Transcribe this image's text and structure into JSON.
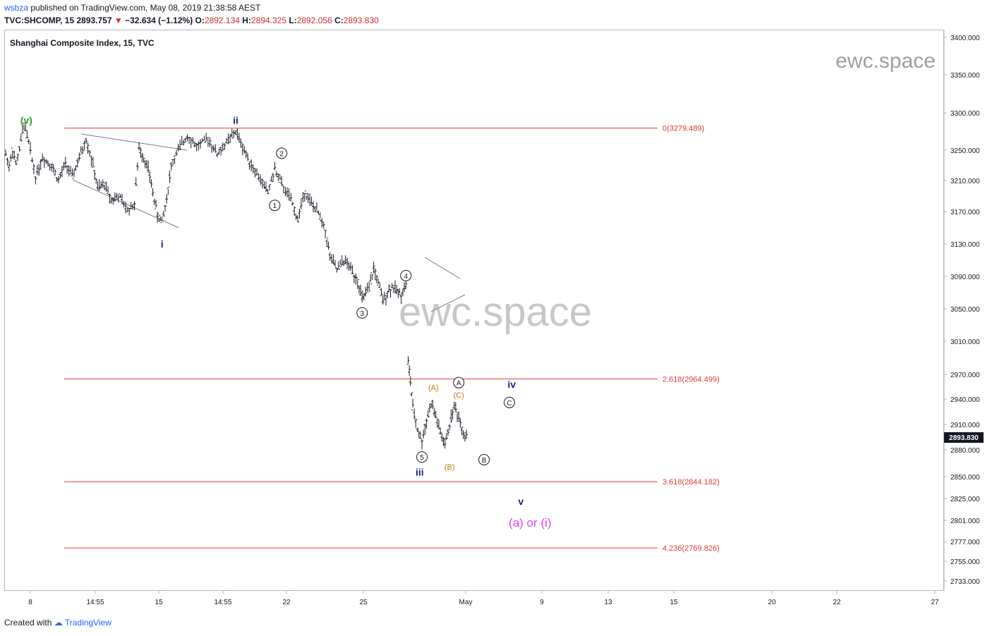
{
  "header": {
    "publisher": "wsbza",
    "published_text": "published on TradingView.com, May 08, 2019 21:38:58 AEST",
    "symbol": "TVC:SHCOMP, 15",
    "last": "2893.757",
    "change": "−32.634 (−1.12%)",
    "o_label": "O:",
    "o": "2892.134",
    "h_label": "H:",
    "h": "2894.325",
    "l_label": "L:",
    "l": "2892.056",
    "c_label": "C:",
    "c": "2893.830"
  },
  "chart_title": "Shanghai Composite Index, 15, TVC",
  "watermark_small": "ewc.space",
  "watermark_big": "ewc.space",
  "price_tag": "2893.830",
  "footer": {
    "created_with": "Created with",
    "brand": "TradingView"
  },
  "colors": {
    "red_line": "#e53935",
    "wave_blue": "#1a237e",
    "wave_green": "#2e9d2e",
    "wave_orange": "#c47a0c",
    "wave_magenta": "#e040fb",
    "bar": "#131722"
  },
  "chart_data": {
    "type": "ohlc",
    "instrument": "Shanghai Composite Index",
    "interval": "15",
    "ylim": [
      2720,
      3420
    ],
    "y_ticks": [
      "3400.000",
      "3350.000",
      "3300.000",
      "3250.000",
      "3210.000",
      "3170.000",
      "3130.000",
      "3090.000",
      "3050.000",
      "3010.000",
      "2970.000",
      "2940.000",
      "2910.000",
      "2880.000",
      "2850.000",
      "2825.000",
      "2801.000",
      "2777.000",
      "2755.000",
      "2733.000"
    ],
    "x_ticks": [
      "8",
      "14:55",
      "15",
      "14:55",
      "22",
      "25",
      "May",
      "9",
      "13",
      "15",
      "20",
      "22",
      "27"
    ],
    "fib_levels": [
      {
        "label": "0(3279.489)",
        "value": 3279.489
      },
      {
        "label": "2.618(2964.499)",
        "value": 2964.499
      },
      {
        "label": "3.618(2844.182)",
        "value": 2844.182
      },
      {
        "label": "4.236(2769.826)",
        "value": 2769.826
      }
    ],
    "price_path": [
      [
        0,
        3245
      ],
      [
        0.15,
        3230
      ],
      [
        0.3,
        3250
      ],
      [
        0.45,
        3232
      ],
      [
        0.6,
        3252
      ],
      [
        0.8,
        3285
      ],
      [
        1.0,
        3260
      ],
      [
        1.3,
        3215
      ],
      [
        1.6,
        3240
      ],
      [
        2.0,
        3230
      ],
      [
        2.3,
        3210
      ],
      [
        2.6,
        3232
      ],
      [
        2.9,
        3215
      ],
      [
        3.2,
        3240
      ],
      [
        3.5,
        3265
      ],
      [
        3.8,
        3230
      ],
      [
        4.0,
        3200
      ],
      [
        4.3,
        3205
      ],
      [
        4.6,
        3185
      ],
      [
        4.9,
        3190
      ],
      [
        5.3,
        3172
      ],
      [
        5.6,
        3180
      ],
      [
        5.8,
        3253
      ],
      [
        6.0,
        3240
      ],
      [
        6.2,
        3225
      ],
      [
        6.4,
        3195
      ],
      [
        6.6,
        3165
      ],
      [
        6.8,
        3158
      ],
      [
        7.0,
        3185
      ],
      [
        7.2,
        3230
      ],
      [
        7.5,
        3250
      ],
      [
        7.9,
        3270
      ],
      [
        8.3,
        3255
      ],
      [
        8.8,
        3265
      ],
      [
        9.2,
        3245
      ],
      [
        9.6,
        3260
      ],
      [
        10.0,
        3275
      ],
      [
        10.3,
        3255
      ],
      [
        10.6,
        3235
      ],
      [
        11.0,
        3215
      ],
      [
        11.4,
        3195
      ],
      [
        11.7,
        3225
      ],
      [
        12.0,
        3205
      ],
      [
        12.4,
        3185
      ],
      [
        12.7,
        3160
      ],
      [
        13.0,
        3195
      ],
      [
        13.3,
        3180
      ],
      [
        13.6,
        3168
      ],
      [
        13.9,
        3145
      ],
      [
        14.1,
        3115
      ],
      [
        14.4,
        3098
      ],
      [
        14.7,
        3110
      ],
      [
        15.0,
        3100
      ],
      [
        15.3,
        3085
      ],
      [
        15.5,
        3062
      ],
      [
        15.8,
        3075
      ],
      [
        16.0,
        3100
      ],
      [
        16.2,
        3082
      ],
      [
        16.4,
        3060
      ],
      [
        16.6,
        3070
      ],
      [
        16.8,
        3078
      ],
      [
        17.0,
        3072
      ],
      [
        17.2,
        3068
      ],
      [
        17.4,
        3080
      ],
      [
        17.5,
        2985
      ],
      [
        17.6,
        2962
      ],
      [
        17.7,
        2930
      ],
      [
        17.9,
        2905
      ],
      [
        18.1,
        2890
      ],
      [
        18.3,
        2915
      ],
      [
        18.5,
        2935
      ],
      [
        18.7,
        2920
      ],
      [
        18.9,
        2900
      ],
      [
        19.1,
        2885
      ],
      [
        19.3,
        2910
      ],
      [
        19.5,
        2932
      ],
      [
        19.7,
        2918
      ],
      [
        19.9,
        2900
      ],
      [
        20.1,
        2895
      ]
    ],
    "wave_labels": [
      {
        "text": "(v)",
        "color": "green",
        "bar": 0.9,
        "y": 3290
      },
      {
        "text": "ii",
        "color": "blue",
        "bar": 10.0,
        "y": 3290
      },
      {
        "text": "i",
        "color": "blue",
        "bar": 6.8,
        "y": 3130
      },
      {
        "text": "2",
        "circled": true,
        "bar": 12.0,
        "y": 3246
      },
      {
        "text": "1",
        "circled": true,
        "bar": 11.7,
        "y": 3178
      },
      {
        "text": "4",
        "circled": true,
        "bar": 17.4,
        "y": 3091
      },
      {
        "text": "3",
        "circled": true,
        "bar": 15.5,
        "y": 3045
      },
      {
        "text": "A",
        "circled": true,
        "bar": 19.7,
        "y": 2960
      },
      {
        "text": "(A)",
        "color": "orange",
        "bar": 18.6,
        "y": 2955
      },
      {
        "text": "(C)",
        "color": "orange",
        "bar": 19.7,
        "y": 2946
      },
      {
        "text": "iv",
        "color": "blue",
        "bar": 22.0,
        "y": 2958
      },
      {
        "text": "C",
        "circled": true,
        "bar": 21.9,
        "y": 2936
      },
      {
        "text": "5",
        "circled": true,
        "bar": 18.1,
        "y": 2872
      },
      {
        "text": "(B)",
        "color": "orange",
        "bar": 19.3,
        "y": 2862
      },
      {
        "text": "B",
        "circled": true,
        "bar": 20.8,
        "y": 2869
      },
      {
        "text": "iii",
        "color": "blue",
        "bar": 18.0,
        "y": 2855
      },
      {
        "text": "v",
        "color": "blue",
        "bar": 22.4,
        "y": 2822
      },
      {
        "text": "(a) or (i)",
        "color": "magenta",
        "bar": 22.8,
        "y": 2798
      }
    ]
  }
}
